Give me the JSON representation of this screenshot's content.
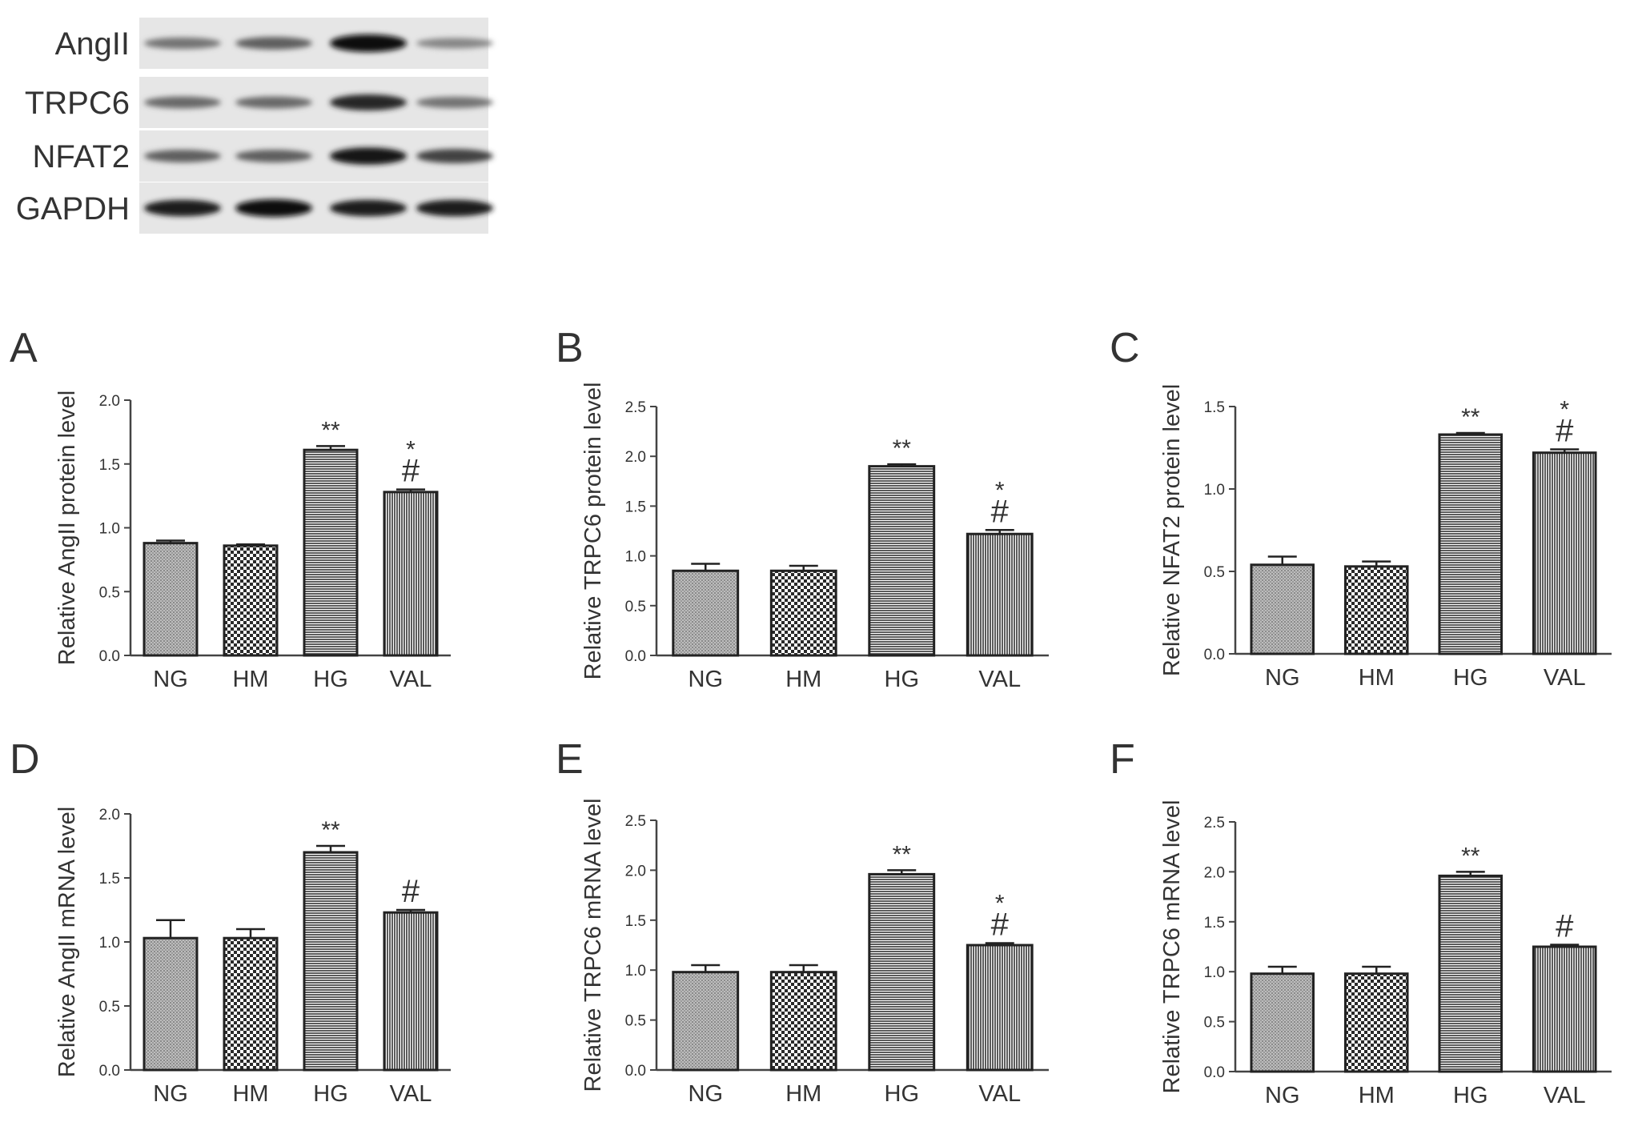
{
  "blot": {
    "labels": [
      "AngII",
      "TRPC6",
      "NFAT2",
      "GAPDH"
    ],
    "band_intensity": [
      [
        0.45,
        0.55,
        1.0,
        0.35
      ],
      [
        0.5,
        0.5,
        0.85,
        0.45
      ],
      [
        0.55,
        0.55,
        0.95,
        0.7
      ],
      [
        0.9,
        1.0,
        0.9,
        0.9
      ]
    ]
  },
  "chart_data": [
    {
      "panel": "A",
      "type": "bar",
      "categories": [
        "NG",
        "HM",
        "HG",
        "VAL"
      ],
      "values": [
        0.88,
        0.86,
        1.61,
        1.28
      ],
      "errors": [
        0.02,
        0.01,
        0.03,
        0.02
      ],
      "annotations_star": [
        "",
        "",
        "**",
        "*"
      ],
      "annotations_hash": [
        "",
        "",
        "",
        "#"
      ],
      "ylabel": "Relative AngII protein level",
      "ylim": [
        0,
        2.0
      ],
      "yticks": [
        "0.0",
        "0.5",
        "1.0",
        "1.5",
        "2.0"
      ]
    },
    {
      "panel": "B",
      "type": "bar",
      "categories": [
        "NG",
        "HM",
        "HG",
        "VAL"
      ],
      "values": [
        0.85,
        0.85,
        1.9,
        1.22
      ],
      "errors": [
        0.07,
        0.05,
        0.02,
        0.04
      ],
      "annotations_star": [
        "",
        "",
        "**",
        "*"
      ],
      "annotations_hash": [
        "",
        "",
        "",
        "#"
      ],
      "ylabel": "Relative TRPC6 protein level",
      "ylim": [
        0,
        2.5
      ],
      "yticks": [
        "0.0",
        "0.5",
        "1.0",
        "1.5",
        "2.0",
        "2.5"
      ]
    },
    {
      "panel": "C",
      "type": "bar",
      "categories": [
        "NG",
        "HM",
        "HG",
        "VAL"
      ],
      "values": [
        0.54,
        0.53,
        1.33,
        1.22
      ],
      "errors": [
        0.05,
        0.03,
        0.01,
        0.02
      ],
      "annotations_star": [
        "",
        "",
        "**",
        "*"
      ],
      "annotations_hash": [
        "",
        "",
        "",
        "#"
      ],
      "ylabel": "Relative NFAT2 protein level",
      "ylim": [
        0,
        1.5
      ],
      "yticks": [
        "0.0",
        "0.5",
        "1.0",
        "1.5"
      ]
    },
    {
      "panel": "D",
      "type": "bar",
      "categories": [
        "NG",
        "HM",
        "HG",
        "VAL"
      ],
      "values": [
        1.03,
        1.03,
        1.7,
        1.23
      ],
      "errors": [
        0.14,
        0.07,
        0.05,
        0.02
      ],
      "annotations_star": [
        "",
        "",
        "**",
        ""
      ],
      "annotations_hash": [
        "",
        "",
        "",
        "#"
      ],
      "ylabel": "Relative AngII mRNA level",
      "ylim": [
        0,
        2.0
      ],
      "yticks": [
        "0.0",
        "0.5",
        "1.0",
        "1.5",
        "2.0"
      ]
    },
    {
      "panel": "E",
      "type": "bar",
      "categories": [
        "NG",
        "HM",
        "HG",
        "VAL"
      ],
      "values": [
        0.98,
        0.98,
        1.96,
        1.25
      ],
      "errors": [
        0.07,
        0.07,
        0.04,
        0.02
      ],
      "annotations_star": [
        "",
        "",
        "**",
        "*"
      ],
      "annotations_hash": [
        "",
        "",
        "",
        "#"
      ],
      "ylabel": "Relative TRPC6 mRNA level",
      "ylim": [
        0,
        2.5
      ],
      "yticks": [
        "0.0",
        "0.5",
        "1.0",
        "1.5",
        "2.0",
        "2.5"
      ]
    },
    {
      "panel": "F",
      "type": "bar",
      "categories": [
        "NG",
        "HM",
        "HG",
        "VAL"
      ],
      "values": [
        0.98,
        0.98,
        1.96,
        1.25
      ],
      "errors": [
        0.07,
        0.07,
        0.04,
        0.02
      ],
      "annotations_star": [
        "",
        "",
        "**",
        ""
      ],
      "annotations_hash": [
        "",
        "",
        "",
        "#"
      ],
      "ylabel": "Relative TRPC6 mRNA level",
      "ylim": [
        0,
        2.5
      ],
      "yticks": [
        "0.0",
        "0.5",
        "1.0",
        "1.5",
        "2.0",
        "2.5"
      ]
    }
  ]
}
